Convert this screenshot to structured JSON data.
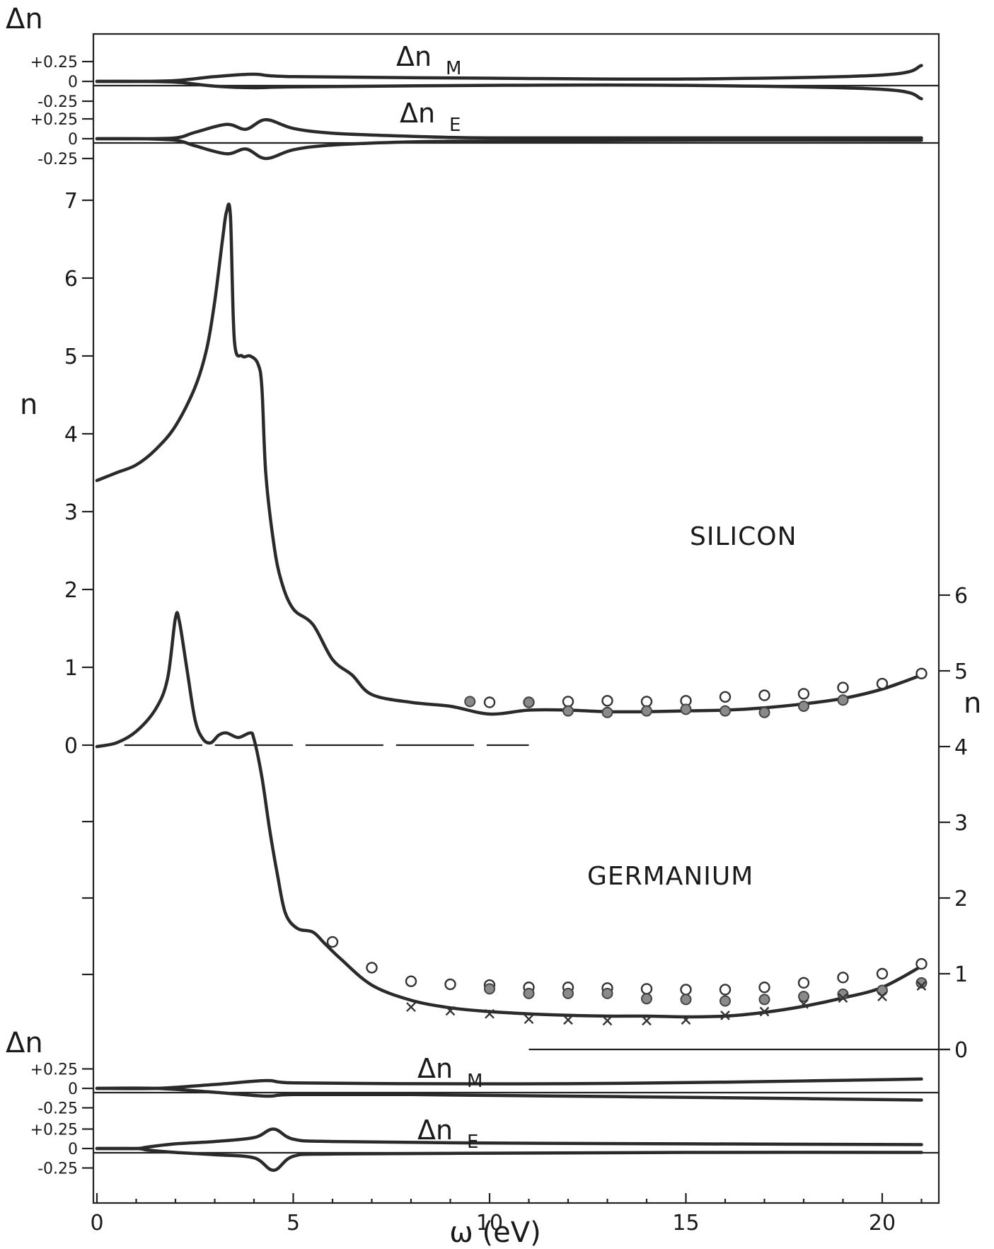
{
  "figure": {
    "xlabel": "ω (eV)",
    "x_ticks": [
      "0",
      "5",
      "10",
      "15",
      "20"
    ],
    "left_axis_label": "n",
    "right_axis_label": "n",
    "left_n_ticks": [
      "0",
      "1",
      "2",
      "3",
      "4",
      "5",
      "6",
      "7"
    ],
    "right_n_ticks": [
      "0",
      "1",
      "2",
      "3",
      "4",
      "5",
      "6"
    ],
    "delta_axis_label": "Δn",
    "delta_ticks": {
      "plus": "+0.25",
      "zero": "0",
      "minus": "-0.25"
    },
    "silicon_label": "SILICON",
    "germanium_label": "GERMANIUM",
    "delta_nM_label": "Δn",
    "delta_nM_sub": "M",
    "delta_nE_label": "Δn",
    "delta_nE_sub": "E"
  },
  "chart_data": [
    {
      "type": "line",
      "title": "SILICON",
      "xlabel": "ω (eV)",
      "ylabel": "n",
      "xlim": [
        0,
        21.5
      ],
      "ylim": [
        0,
        7
      ],
      "series": [
        {
          "style": "line",
          "x": [
            0,
            0.5,
            1,
            1.5,
            2,
            2.5,
            2.8,
            3.0,
            3.2,
            3.3,
            3.4,
            3.5,
            3.7,
            3.9,
            4.1,
            4.2,
            4.3,
            4.5,
            4.7,
            5.0,
            5.5,
            6.0,
            6.5,
            7.0,
            8.0,
            9.0,
            10.0,
            11.0,
            12.0,
            13.0,
            14.0,
            15.0,
            16.0,
            17.0,
            18.0,
            19.0,
            20.0,
            21.0
          ],
          "y": [
            3.4,
            3.5,
            3.6,
            3.8,
            4.1,
            4.6,
            5.1,
            5.7,
            6.5,
            6.85,
            6.8,
            5.2,
            5.0,
            5.0,
            4.9,
            4.6,
            3.5,
            2.6,
            2.1,
            1.75,
            1.55,
            1.1,
            0.9,
            0.65,
            0.55,
            0.5,
            0.4,
            0.45,
            0.45,
            0.43,
            0.43,
            0.44,
            0.45,
            0.48,
            0.53,
            0.6,
            0.72,
            0.9
          ]
        },
        {
          "style": "open-circles",
          "x": [
            10,
            11,
            12,
            13,
            14,
            15,
            16,
            17,
            18,
            19,
            20,
            21
          ],
          "y": [
            0.55,
            0.55,
            0.56,
            0.57,
            0.56,
            0.57,
            0.62,
            0.64,
            0.66,
            0.74,
            0.79,
            0.92
          ]
        },
        {
          "style": "filled-circles",
          "x": [
            9.5,
            11,
            12,
            13,
            14,
            15,
            16,
            17,
            18,
            19
          ],
          "y": [
            0.56,
            0.55,
            0.44,
            0.42,
            0.44,
            0.46,
            0.44,
            0.42,
            0.5,
            0.58
          ]
        }
      ]
    },
    {
      "type": "line",
      "title": "GERMANIUM",
      "xlabel": "ω (eV)",
      "ylabel": "n",
      "xlim": [
        0,
        21.5
      ],
      "ylim": [
        0,
        6
      ],
      "series": [
        {
          "style": "line",
          "x": [
            0,
            0.5,
            1.0,
            1.5,
            1.8,
            2.0,
            2.1,
            2.3,
            2.5,
            2.7,
            2.9,
            3.1,
            3.3,
            3.6,
            3.9,
            4.0,
            4.2,
            4.4,
            4.6,
            4.8,
            5.1,
            5.5,
            5.8,
            6.2,
            7.0,
            8.0,
            9.0,
            10.0,
            11.0,
            12.0,
            13.0,
            14.0,
            15.0,
            16.0,
            17.0,
            18.0,
            19.0,
            20.0,
            21.0
          ],
          "y": [
            4.0,
            4.05,
            4.2,
            4.5,
            4.9,
            5.7,
            5.65,
            5.0,
            4.35,
            4.1,
            4.05,
            4.15,
            4.18,
            4.12,
            4.18,
            4.1,
            3.6,
            2.9,
            2.3,
            1.8,
            1.6,
            1.55,
            1.4,
            1.2,
            0.85,
            0.65,
            0.55,
            0.5,
            0.47,
            0.45,
            0.44,
            0.44,
            0.43,
            0.44,
            0.49,
            0.57,
            0.68,
            0.82,
            1.1
          ]
        },
        {
          "style": "open-circles",
          "x": [
            6,
            7,
            8,
            9,
            10,
            11,
            12,
            13,
            14,
            15,
            16,
            17,
            18,
            19,
            20,
            21
          ],
          "y": [
            1.42,
            1.08,
            0.9,
            0.86,
            0.85,
            0.82,
            0.82,
            0.81,
            0.8,
            0.79,
            0.79,
            0.82,
            0.88,
            0.95,
            1.0,
            1.13
          ]
        },
        {
          "style": "filled-circles",
          "x": [
            10,
            11,
            12,
            13,
            14,
            15,
            16,
            17,
            18,
            19,
            20,
            21
          ],
          "y": [
            0.8,
            0.74,
            0.74,
            0.74,
            0.67,
            0.66,
            0.64,
            0.66,
            0.7,
            0.73,
            0.78,
            0.88
          ]
        },
        {
          "style": "crosses",
          "x": [
            8,
            9,
            10,
            11,
            12,
            13,
            14,
            15,
            16,
            17,
            18,
            19,
            20,
            21
          ],
          "y": [
            0.56,
            0.51,
            0.47,
            0.4,
            0.39,
            0.38,
            0.38,
            0.39,
            0.45,
            0.5,
            0.6,
            0.68,
            0.7,
            0.84
          ]
        }
      ]
    },
    {
      "type": "line",
      "title": "Δn_M (Silicon)",
      "xlim": [
        0,
        21.5
      ],
      "ylim": [
        -0.25,
        0.25
      ],
      "series": [
        {
          "style": "upper",
          "x": [
            0,
            1,
            2,
            3,
            4,
            5,
            10,
            15,
            20,
            21
          ],
          "y": [
            0,
            0,
            0.01,
            0.06,
            0.09,
            0.06,
            0.04,
            0.03,
            0.08,
            0.2
          ]
        },
        {
          "style": "lower",
          "x": [
            0,
            1,
            2,
            3,
            4,
            5,
            10,
            15,
            20,
            21
          ],
          "y": [
            0,
            0,
            -0.01,
            -0.06,
            -0.08,
            -0.07,
            -0.05,
            -0.05,
            -0.1,
            -0.22
          ]
        }
      ]
    },
    {
      "type": "line",
      "title": "Δn_E (Silicon)",
      "xlim": [
        0,
        21.5
      ],
      "ylim": [
        -0.25,
        0.25
      ],
      "series": [
        {
          "style": "upper",
          "x": [
            0,
            1,
            2,
            2.5,
            3.3,
            3.8,
            4.3,
            5,
            6,
            8,
            10,
            15,
            21
          ],
          "y": [
            0,
            0,
            0.01,
            0.08,
            0.18,
            0.12,
            0.24,
            0.13,
            0.07,
            0.03,
            0.01,
            0.01,
            0.01
          ]
        },
        {
          "style": "lower",
          "x": [
            0,
            1,
            2,
            2.5,
            3.3,
            3.8,
            4.3,
            5,
            6,
            8,
            10,
            15,
            21
          ],
          "y": [
            0,
            0,
            -0.02,
            -0.09,
            -0.19,
            -0.13,
            -0.25,
            -0.14,
            -0.08,
            -0.04,
            -0.03,
            -0.02,
            -0.02
          ]
        }
      ]
    },
    {
      "type": "line",
      "title": "Δn_M (Germanium)",
      "xlim": [
        0,
        21.5
      ],
      "ylim": [
        -0.25,
        0.25
      ],
      "series": [
        {
          "style": "upper",
          "x": [
            0,
            1.5,
            3,
            4.3,
            5,
            8,
            12,
            16,
            21
          ],
          "y": [
            0,
            0,
            0.05,
            0.1,
            0.07,
            0.06,
            0.06,
            0.08,
            0.12
          ]
        },
        {
          "style": "lower",
          "x": [
            0,
            1.5,
            3,
            4.3,
            5,
            8,
            12,
            16,
            21
          ],
          "y": [
            0,
            0,
            -0.05,
            -0.1,
            -0.08,
            -0.08,
            -0.1,
            -0.12,
            -0.15
          ]
        }
      ]
    },
    {
      "type": "line",
      "title": "Δn_E (Germanium)",
      "xlim": [
        0,
        21.5
      ],
      "ylim": [
        -0.25,
        0.25
      ],
      "series": [
        {
          "style": "upper",
          "x": [
            0,
            1,
            1.3,
            2,
            3,
            4,
            4.5,
            5,
            6,
            10,
            15,
            21
          ],
          "y": [
            0,
            0,
            0.02,
            0.06,
            0.09,
            0.14,
            0.25,
            0.12,
            0.09,
            0.07,
            0.06,
            0.05
          ]
        },
        {
          "style": "lower",
          "x": [
            0,
            1,
            1.3,
            2,
            3,
            4,
            4.5,
            5,
            6,
            10,
            15,
            21
          ],
          "y": [
            0,
            0,
            -0.02,
            -0.05,
            -0.08,
            -0.12,
            -0.28,
            -0.1,
            -0.07,
            -0.06,
            -0.05,
            -0.05
          ]
        }
      ]
    }
  ]
}
